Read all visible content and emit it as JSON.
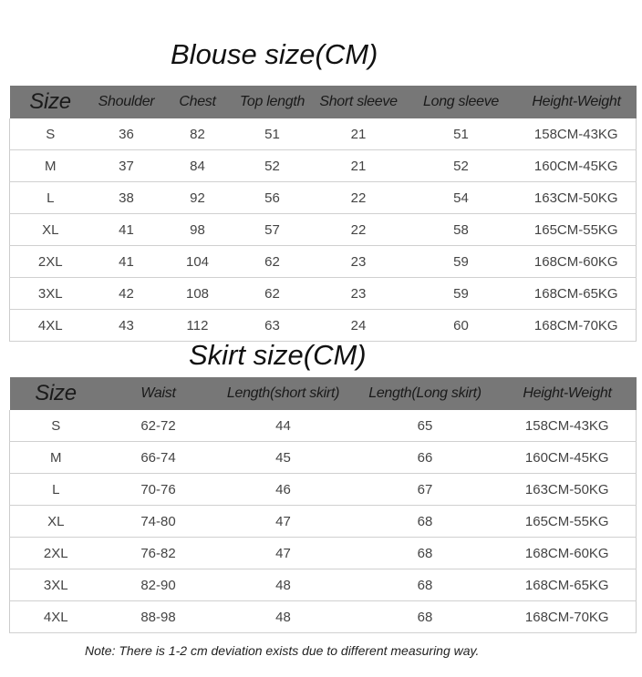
{
  "blouse": {
    "title": "Blouse size(CM)",
    "headers": [
      "Size",
      "Shoulder",
      "Chest",
      "Top length",
      "Short sleeve",
      "Long sleeve",
      "Height-Weight"
    ],
    "rows": [
      [
        "S",
        "36",
        "82",
        "51",
        "21",
        "51",
        "158CM-43KG"
      ],
      [
        "M",
        "37",
        "84",
        "52",
        "21",
        "52",
        "160CM-45KG"
      ],
      [
        "L",
        "38",
        "92",
        "56",
        "22",
        "54",
        "163CM-50KG"
      ],
      [
        "XL",
        "41",
        "98",
        "57",
        "22",
        "58",
        "165CM-55KG"
      ],
      [
        "2XL",
        "41",
        "104",
        "62",
        "23",
        "59",
        "168CM-60KG"
      ],
      [
        "3XL",
        "42",
        "108",
        "62",
        "23",
        "59",
        "168CM-65KG"
      ],
      [
        "4XL",
        "43",
        "112",
        "63",
        "24",
        "60",
        "168CM-70KG"
      ]
    ]
  },
  "skirt": {
    "title": "Skirt size(CM)",
    "headers": [
      "Size",
      "Waist",
      "Length(short skirt)",
      "Length(Long skirt)",
      "Height-Weight"
    ],
    "rows": [
      [
        "S",
        "62-72",
        "44",
        "65",
        "158CM-43KG"
      ],
      [
        "M",
        "66-74",
        "45",
        "66",
        "160CM-45KG"
      ],
      [
        "L",
        "70-76",
        "46",
        "67",
        "163CM-50KG"
      ],
      [
        "XL",
        "74-80",
        "47",
        "68",
        "165CM-55KG"
      ],
      [
        "2XL",
        "76-82",
        "47",
        "68",
        "168CM-60KG"
      ],
      [
        "3XL",
        "82-90",
        "48",
        "68",
        "168CM-65KG"
      ],
      [
        "4XL",
        "88-98",
        "48",
        "68",
        "168CM-70KG"
      ]
    ]
  },
  "note": "Note: There is 1-2 cm deviation exists due to different measuring way.",
  "colors": {
    "header_bg": "#777777"
  }
}
